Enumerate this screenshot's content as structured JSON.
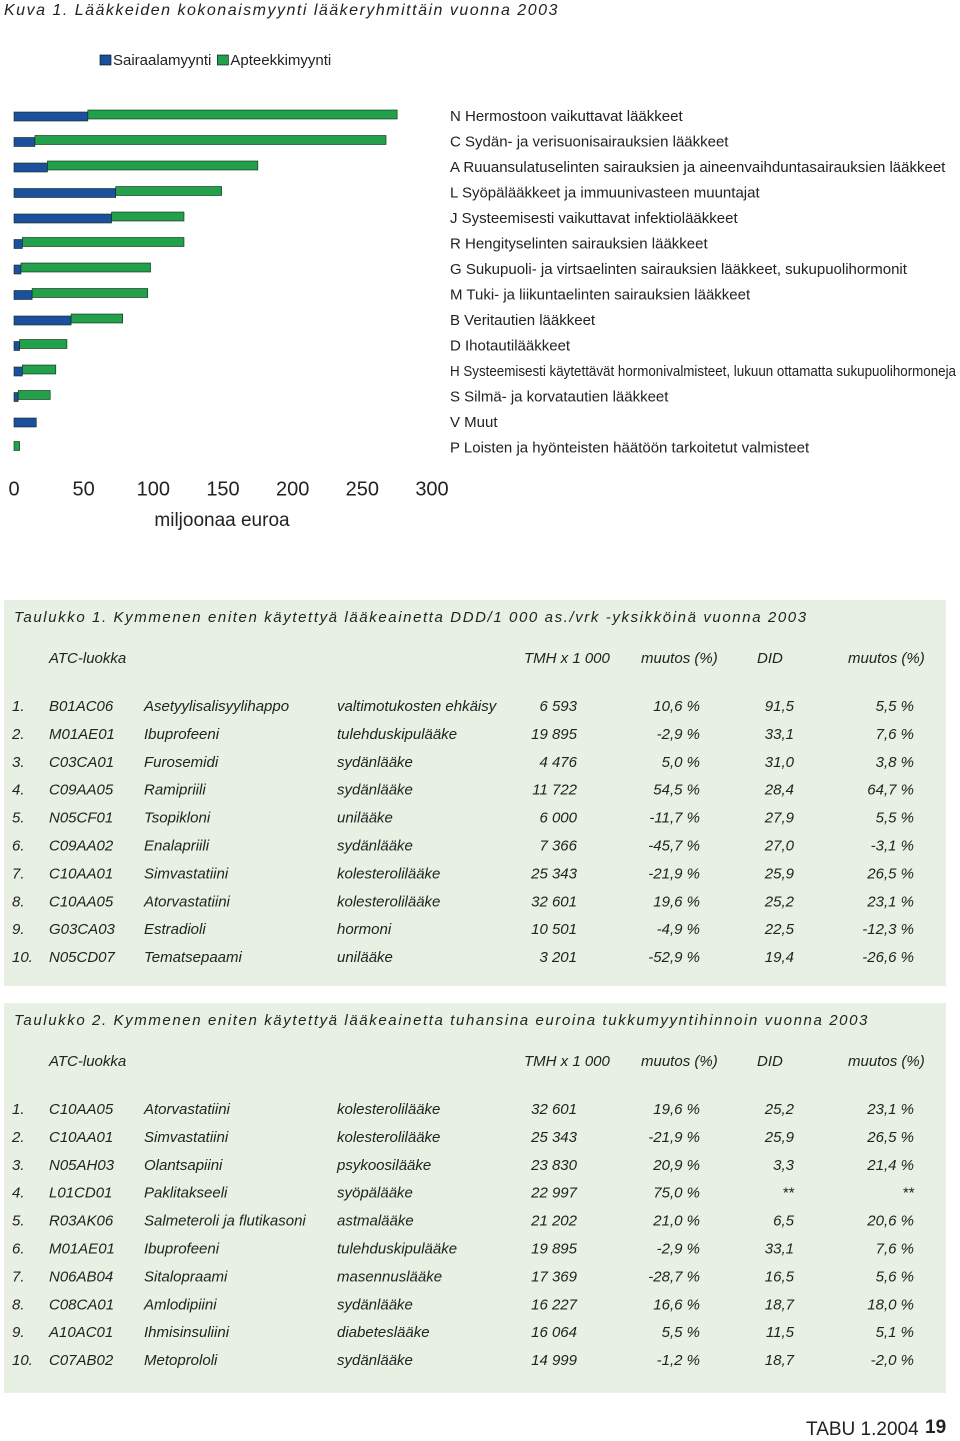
{
  "chart_data": {
    "type": "bar",
    "orientation": "horizontal",
    "stacked": true,
    "title": "Kuva 1. Lääkkeiden kokonaismyynti lääkeryhmittäin vuonna 2003",
    "x_label": "miljoonaa euroa",
    "categories": [
      "N Hermostoon vaikuttavat lääkkeet",
      "C Sydän- ja verisuonisairauksien lääkkeet",
      "A Ruuansulatuselinten sairauksien ja aineenvaihduntasairauksien lääkkeet",
      "L Syöpälääkkeet ja immuunivasteen muuntajat",
      "J Systeemisesti vaikuttavat infektiolääkkeet",
      "R Hengityselinten sairauksien lääkkeet",
      "G Sukupuoli- ja virtsaelinten sairauksien lääkkeet, sukupuolihormonit",
      "M Tuki- ja liikuntaelinten sairauksien lääkkeet",
      "B Veritautien lääkkeet",
      "D Ihotautilääkkeet",
      "H Systeemisesti käytettävät hormonivalmisteet, lukuun ottamatta sukupuolihormoneja",
      "S Silmä- ja korvatautien lääkkeet",
      "V Muut",
      "P Loisten ja hyönteisten häätöön tarkoitetut valmisteet"
    ],
    "series": [
      {
        "name": "Sairaalamyynti",
        "color": "#1c4f9e",
        "values": [
          53,
          15,
          24,
          73,
          70,
          6,
          5,
          13,
          41,
          4,
          6,
          3,
          16,
          0
        ]
      },
      {
        "name": "Apteekkimyynti",
        "color": "#22a04c",
        "values": [
          222,
          252,
          151,
          76,
          52,
          116,
          93,
          83,
          37,
          34,
          24,
          23,
          0,
          4
        ]
      }
    ],
    "xlim": [
      0,
      300
    ],
    "xticks": [
      0,
      50,
      100,
      150,
      200,
      250,
      300
    ],
    "legend": "top"
  },
  "table1": {
    "title": "Taulukko 1. Kymmenen eniten käytettyä lääkeainetta DDD/1 000 as./vrk -yksikköinä vuonna 2003",
    "header": [
      "ATC-luokka",
      "TMH x 1 000",
      "muutos (%)",
      "DID",
      "muutos (%)"
    ],
    "rows": [
      [
        "1.",
        "B01AC06",
        "Asetyylisalisyylihappo",
        "valtimotukosten ehkäisy",
        "6 593",
        "10,6 %",
        "91,5",
        "5,5 %"
      ],
      [
        "2.",
        "M01AE01",
        "Ibuprofeeni",
        "tulehduskipulääke",
        "19 895",
        "-2,9 %",
        "33,1",
        "7,6 %"
      ],
      [
        "3.",
        "C03CA01",
        "Furosemidi",
        "sydänlääke",
        "4 476",
        "5,0 %",
        "31,0",
        "3,8 %"
      ],
      [
        "4.",
        "C09AA05",
        "Ramipriili",
        "sydänlääke",
        "11 722",
        "54,5 %",
        "28,4",
        "64,7 %"
      ],
      [
        "5.",
        "N05CF01",
        "Tsopikloni",
        "unilääke",
        "6 000",
        "-11,7 %",
        "27,9",
        "5,5 %"
      ],
      [
        "6.",
        "C09AA02",
        "Enalapriili",
        "sydänlääke",
        "7 366",
        "-45,7 %",
        "27,0",
        "-3,1 %"
      ],
      [
        "7.",
        "C10AA01",
        "Simvastatiini",
        "kolesterolilääke",
        "25 343",
        "-21,9 %",
        "25,9",
        "26,5 %"
      ],
      [
        "8.",
        "C10AA05",
        "Atorvastatiini",
        "kolesterolilääke",
        "32 601",
        "19,6 %",
        "25,2",
        "23,1 %"
      ],
      [
        "9.",
        "G03CA03",
        "Estradioli",
        "hormoni",
        "10 501",
        "-4,9 %",
        "22,5",
        "-12,3 %"
      ],
      [
        "10.",
        "N05CD07",
        "Tematsepaami",
        "unilääke",
        "3 201",
        "-52,9 %",
        "19,4",
        "-26,6 %"
      ]
    ]
  },
  "table2": {
    "title": "Taulukko 2. Kymmenen eniten käytettyä lääkeainetta tuhansina euroina tukkumyyntihinnoin vuonna 2003",
    "header": [
      "ATC-luokka",
      "TMH x 1 000",
      "muutos (%)",
      "DID",
      "muutos (%)"
    ],
    "rows": [
      [
        "1.",
        "C10AA05",
        "Atorvastatiini",
        "kolesterolilääke",
        "32 601",
        "19,6 %",
        "25,2",
        "23,1 %"
      ],
      [
        "2.",
        "C10AA01",
        "Simvastatiini",
        "kolesterolilääke",
        "25 343",
        "-21,9 %",
        "25,9",
        "26,5 %"
      ],
      [
        "3.",
        "N05AH03",
        "Olantsapiini",
        "psykoosilääke",
        "23 830",
        "20,9 %",
        "3,3",
        "21,4 %"
      ],
      [
        "4.",
        "L01CD01",
        "Paklitakseeli",
        "syöpälääke",
        "22 997",
        "75,0 %",
        "**",
        "**"
      ],
      [
        "5.",
        "R03AK06",
        "Salmeteroli ja flutikasoni",
        "astmalääke",
        "21 202",
        "21,0 %",
        "6,5",
        "20,6 %"
      ],
      [
        "6.",
        "M01AE01",
        "Ibuprofeeni",
        "tulehduskipulääke",
        "19 895",
        "-2,9 %",
        "33,1",
        "7,6 %"
      ],
      [
        "7.",
        "N06AB04",
        "Sitalopraami",
        "masennuslääke",
        "17 369",
        "-28,7 %",
        "16,5",
        "5,6 %"
      ],
      [
        "8.",
        "C08CA01",
        "Amlodipiini",
        "sydänlääke",
        "16 227",
        "16,6 %",
        "18,7",
        "18,0 %"
      ],
      [
        "9.",
        "A10AC01",
        "Ihmisinsuliini",
        "diabeteslääke",
        "16 064",
        "5,5 %",
        "11,5",
        "5,1 %"
      ],
      [
        "10.",
        "C07AB02",
        "Metoprololi",
        "sydänlääke",
        "14 999",
        "-1,2 %",
        "18,7",
        "-2,0 %"
      ]
    ]
  },
  "footer": {
    "publication": "TABU 1.2004",
    "page": "19"
  }
}
